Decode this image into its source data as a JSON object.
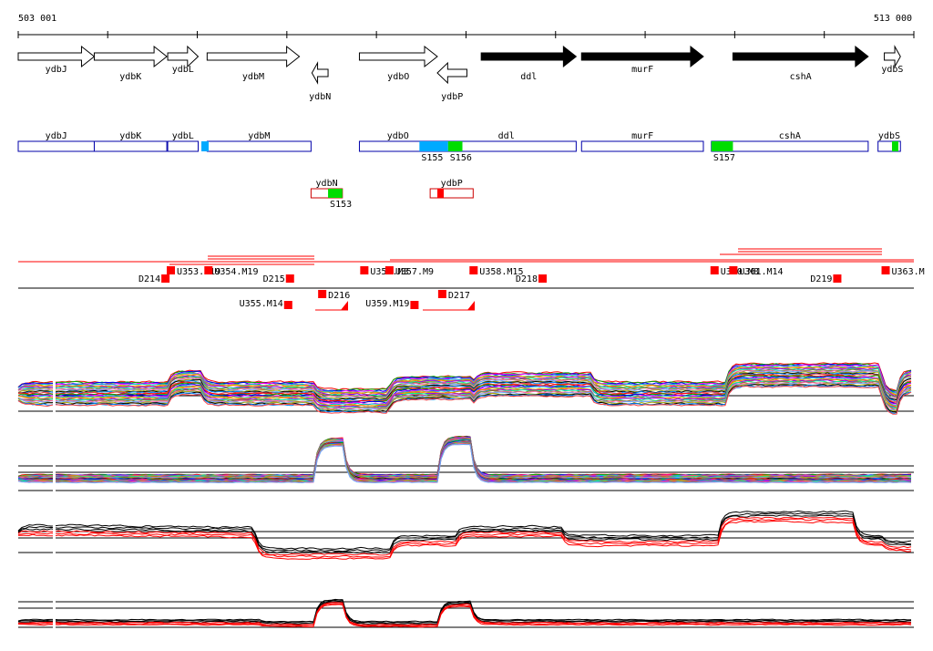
{
  "coords": {
    "start": "503 001",
    "end": "513 000"
  },
  "genes": [
    {
      "name": "ydbJ",
      "strand": "+",
      "essential": false,
      "start": 503001,
      "end": 503850
    },
    {
      "name": "ydbK",
      "strand": "+",
      "essential": false,
      "start": 503850,
      "end": 504660
    },
    {
      "name": "ydbL",
      "strand": "+",
      "essential": false,
      "start": 504670,
      "end": 505010
    },
    {
      "name": "ydbM",
      "strand": "+",
      "essential": false,
      "start": 505110,
      "end": 506140
    },
    {
      "name": "ydbN",
      "strand": "-",
      "essential": false,
      "start": 506280,
      "end": 506460
    },
    {
      "name": "ydbO",
      "strand": "+",
      "essential": false,
      "start": 506810,
      "end": 507680
    },
    {
      "name": "ydbP",
      "strand": "-",
      "essential": false,
      "start": 507680,
      "end": 508010
    },
    {
      "name": "ddl",
      "strand": "+",
      "essential": true,
      "start": 508170,
      "end": 509230
    },
    {
      "name": "murF",
      "strand": "+",
      "essential": true,
      "start": 509290,
      "end": 510650
    },
    {
      "name": "cshA",
      "strand": "+",
      "essential": true,
      "start": 510980,
      "end": 512490
    },
    {
      "name": "ydbS",
      "strand": "+",
      "essential": false,
      "start": 512670,
      "end": 512850
    }
  ],
  "operons": {
    "row1": [
      {
        "name": "ydbJ",
        "start": 503001,
        "end": 503850
      },
      {
        "name": "ydbK",
        "start": 503850,
        "end": 504660
      },
      {
        "name": "ydbL",
        "start": 504670,
        "end": 505010
      },
      {
        "name": "ydbM",
        "start": 505110,
        "end": 506270
      },
      {
        "name": "ydbO",
        "start": 506810,
        "end": 507670
      },
      {
        "name": "ddl",
        "start": 507670,
        "end": 509230
      },
      {
        "name": "murF",
        "start": 509290,
        "end": 510650
      },
      {
        "name": "cshA",
        "start": 510740,
        "end": 512490
      },
      {
        "name": "ydbS",
        "start": 512600,
        "end": 512850
      }
    ],
    "row2": [
      {
        "name": "ydbN",
        "start": 506270,
        "end": 506620
      },
      {
        "name": "ydbP",
        "start": 507600,
        "end": 508080
      }
    ]
  },
  "promoters": [
    {
      "label": "S155",
      "start": 507480,
      "end": 507800,
      "color": "#00aaff"
    },
    {
      "label": "S156",
      "start": 507800,
      "end": 507960,
      "color": "#00dd00"
    },
    {
      "label": "S157",
      "start": 510740,
      "end": 510980,
      "color": "#00dd00"
    },
    {
      "label": "S153",
      "start": 506460,
      "end": 506620,
      "color": "#00dd00"
    }
  ],
  "segment_labels": [
    {
      "label": "U353.M19",
      "pos": 504710,
      "level": "upper"
    },
    {
      "label": "D214",
      "pos": 504650,
      "level": "upper2"
    },
    {
      "label": "U354.M19",
      "pos": 505130,
      "level": "upper"
    },
    {
      "label": "D215",
      "pos": 506040,
      "level": "upper2"
    },
    {
      "label": "D216",
      "pos": 506400,
      "level": "lower"
    },
    {
      "label": "U355.M14",
      "pos": 506020,
      "level": "lower2"
    },
    {
      "label": "U356.M3",
      "pos": 506870,
      "level": "upper"
    },
    {
      "label": "U357.M9",
      "pos": 507150,
      "level": "upper"
    },
    {
      "label": "D217",
      "pos": 507740,
      "level": "lower"
    },
    {
      "label": "U359.M19",
      "pos": 507430,
      "level": "lower2"
    },
    {
      "label": "U358.M15",
      "pos": 508090,
      "level": "upper"
    },
    {
      "label": "D218",
      "pos": 508860,
      "level": "upper2"
    },
    {
      "label": "U360.M8",
      "pos": 510780,
      "level": "upper"
    },
    {
      "label": "U361.M14",
      "pos": 510990,
      "level": "upper"
    },
    {
      "label": "D219",
      "pos": 512150,
      "level": "upper2"
    },
    {
      "label": "U363.M",
      "pos": 512690,
      "level": "upper"
    }
  ],
  "tracks": [
    {
      "kind": "rainbow",
      "count": 32
    },
    {
      "kind": "rainbow-small",
      "count": 28
    },
    {
      "kind": "black-red",
      "count": 6
    },
    {
      "kind": "black-red-small",
      "count": 6
    }
  ]
}
